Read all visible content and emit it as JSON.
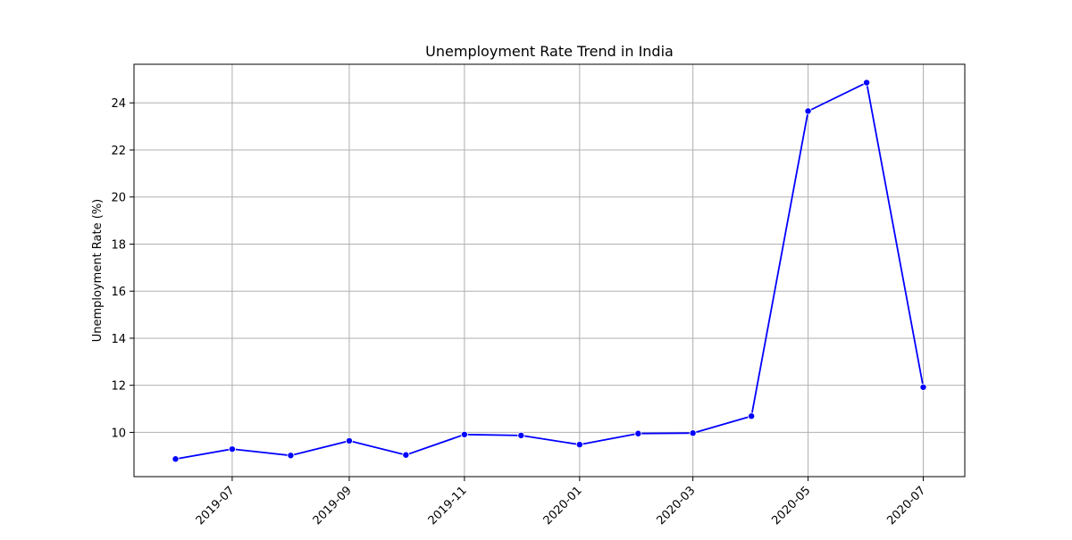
{
  "chart_data": {
    "type": "line",
    "title": "Unemployment Rate Trend in India",
    "xlabel": "",
    "ylabel": "Unemployment Rate (%)",
    "x": [
      "2019-06-01",
      "2019-07-01",
      "2019-08-01",
      "2019-09-01",
      "2019-10-01",
      "2019-11-01",
      "2019-12-01",
      "2020-01-01",
      "2020-02-01",
      "2020-03-01",
      "2020-04-01",
      "2020-05-01",
      "2020-06-01",
      "2020-07-01"
    ],
    "series": [
      {
        "values": [
          8.87,
          9.29,
          9.02,
          9.64,
          9.04,
          9.91,
          9.87,
          9.48,
          9.95,
          9.97,
          10.69,
          23.65,
          24.86,
          11.92
        ],
        "color": "#0000ff",
        "marker": "circle"
      }
    ],
    "x_ticks": [
      "2019-07",
      "2019-09",
      "2019-11",
      "2020-01",
      "2020-03",
      "2020-05",
      "2020-07"
    ],
    "y_ticks": [
      10,
      12,
      14,
      16,
      18,
      20,
      22,
      24
    ],
    "xlim": [
      "2019-05-10",
      "2020-07-23"
    ],
    "ylim": [
      8.12,
      25.64
    ],
    "x_tick_rotation": 45,
    "grid": true,
    "legend": "none"
  }
}
